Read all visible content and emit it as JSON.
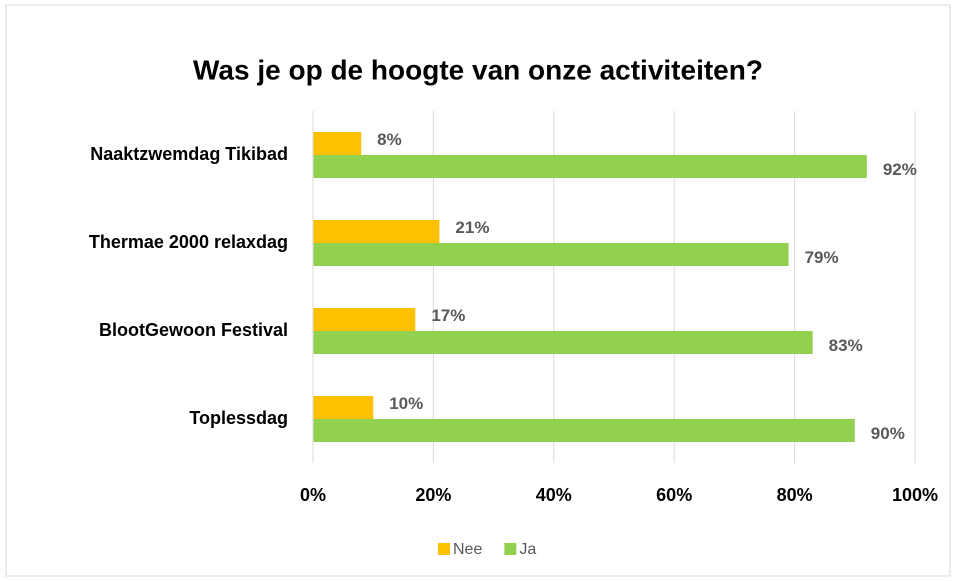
{
  "chart_data": {
    "type": "bar",
    "orientation": "horizontal",
    "title": "Was je op de hoogte van onze activiteiten?",
    "categories": [
      "Naaktzwemdag Tikibad",
      "Thermae 2000 relaxdag",
      "BlootGewoon Festival",
      "Toplessdag"
    ],
    "series": [
      {
        "name": "Nee",
        "color": "#ffc000",
        "values": [
          8,
          21,
          17,
          10
        ],
        "value_labels": [
          "8%",
          "21%",
          "17%",
          "10%"
        ]
      },
      {
        "name": "Ja",
        "color": "#92d050",
        "values": [
          92,
          79,
          83,
          90
        ],
        "value_labels": [
          "92%",
          "79%",
          "83%",
          "90%"
        ]
      }
    ],
    "xlim": [
      0,
      100
    ],
    "xticks": [
      {
        "value": 0,
        "label": "0%"
      },
      {
        "value": 20,
        "label": "20%"
      },
      {
        "value": 40,
        "label": "40%"
      },
      {
        "value": 60,
        "label": "60%"
      },
      {
        "value": 80,
        "label": "80%"
      },
      {
        "value": 100,
        "label": "100%"
      }
    ],
    "grid": true,
    "legend": "bottom"
  }
}
